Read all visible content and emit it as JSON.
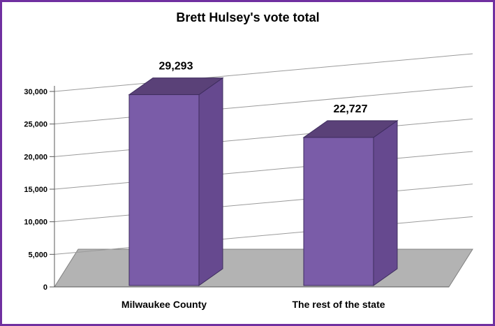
{
  "chart_data": {
    "type": "bar",
    "style": "3d-column",
    "title": "Brett Hulsey's vote total",
    "categories": [
      "Milwaukee County",
      "The rest of the state"
    ],
    "values": [
      29293,
      22727
    ],
    "value_labels": [
      "29,293",
      "22,727"
    ],
    "xlabel": "",
    "ylabel": "",
    "ylim": [
      0,
      30000
    ],
    "y_ticks": [
      {
        "value": 0,
        "label": "0"
      },
      {
        "value": 5000,
        "label": "5,000"
      },
      {
        "value": 10000,
        "label": "10,000"
      },
      {
        "value": 15000,
        "label": "15,000"
      },
      {
        "value": 20000,
        "label": "20,000"
      },
      {
        "value": 25000,
        "label": "25,000"
      },
      {
        "value": 30000,
        "label": "30,000"
      }
    ],
    "grid": true,
    "legend": "none",
    "colors": {
      "bar_front": "#7A5CA8",
      "bar_top": "#5A4178",
      "bar_side": "#66498F",
      "bar_edge": "#3E2D5E",
      "floor": "#B3B3B3",
      "floor_edge": "#808080",
      "gridline": "#9B9B9B",
      "axis": "#595959",
      "frame_border": "#7030A0",
      "text": "#000000"
    }
  }
}
